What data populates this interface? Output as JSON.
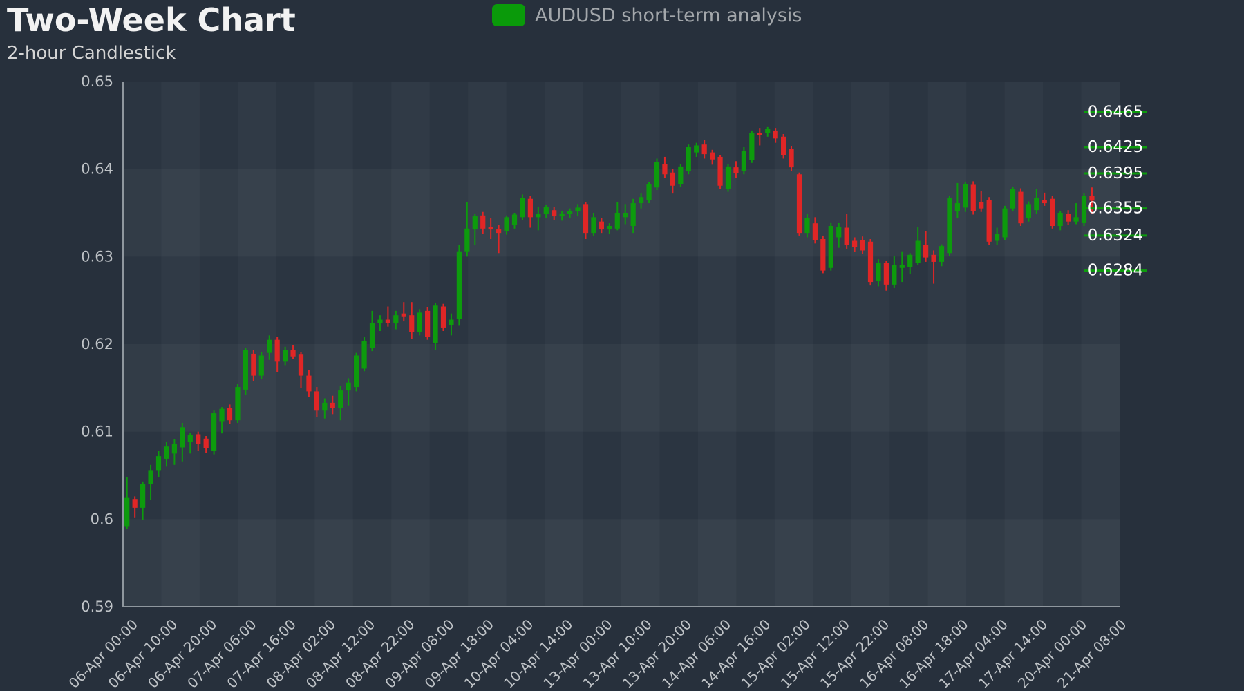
{
  "header": {
    "title": "Two-Week Chart",
    "subtitle": "2-hour Candlestick"
  },
  "legend": {
    "label": "AUDUSD short-term analysis",
    "swatch_color": "#0a9a0a"
  },
  "chart_data": {
    "type": "candlestick",
    "title": "Two-Week Chart",
    "subtitle": "2-hour Candlestick",
    "legend": "AUDUSD short-term analysis",
    "ylim": [
      0.59,
      0.65
    ],
    "y_ticks": [
      "0.65",
      "0.64",
      "0.63",
      "0.62",
      "0.61",
      "0.6",
      "0.59"
    ],
    "y_tick_values": [
      0.65,
      0.64,
      0.63,
      0.62,
      0.61,
      0.6,
      0.59
    ],
    "x_tick_labels": [
      "06-Apr 00:00",
      "06-Apr 10:00",
      "06-Apr 20:00",
      "07-Apr 06:00",
      "07-Apr 16:00",
      "08-Apr 02:00",
      "08-Apr 12:00",
      "08-Apr 22:00",
      "09-Apr 08:00",
      "09-Apr 18:00",
      "10-Apr 04:00",
      "10-Apr 14:00",
      "13-Apr 00:00",
      "13-Apr 10:00",
      "13-Apr 20:00",
      "14-Apr 06:00",
      "14-Apr 16:00",
      "15-Apr 02:00",
      "15-Apr 12:00",
      "15-Apr 22:00",
      "16-Apr 08:00",
      "16-Apr 18:00",
      "17-Apr 04:00",
      "17-Apr 14:00",
      "20-Apr 00:00",
      "21-Apr 08:00"
    ],
    "x_tick_slot_interval": 5,
    "total_slots": 126,
    "grid": "alternating row and column shading bands, no gridlines",
    "legend_position": "top-center",
    "price_level_labels": [
      "0.6465",
      "0.6425",
      "0.6395",
      "0.6355",
      "0.6324",
      "0.6284"
    ],
    "price_levels": [
      0.6465,
      0.6425,
      0.6395,
      0.6355,
      0.6324,
      0.6284
    ],
    "colors": {
      "up_candle": "#0d9b0d",
      "down_candle": "#e02626",
      "level_line": "#0d9b0d",
      "level_label_text": "#ffffff",
      "axis_line": "#8f979e",
      "tick_label": "#bfc3c7",
      "plot_bg": "#2b3541",
      "page_bg": "#27303c"
    },
    "candles_ohlc": [
      [
        0.5992,
        0.6048,
        0.5989,
        0.6025
      ],
      [
        0.6023,
        0.6026,
        0.6002,
        0.6013
      ],
      [
        0.6013,
        0.6043,
        0.5999,
        0.604
      ],
      [
        0.604,
        0.6062,
        0.6022,
        0.6056
      ],
      [
        0.6056,
        0.6078,
        0.6048,
        0.6072
      ],
      [
        0.6069,
        0.6088,
        0.606,
        0.6083
      ],
      [
        0.6075,
        0.6091,
        0.6062,
        0.6086
      ],
      [
        0.6082,
        0.611,
        0.6066,
        0.6105
      ],
      [
        0.6088,
        0.6099,
        0.6075,
        0.6096
      ],
      [
        0.6097,
        0.61,
        0.6078,
        0.6086
      ],
      [
        0.6092,
        0.6095,
        0.6076,
        0.6081
      ],
      [
        0.6078,
        0.6124,
        0.6074,
        0.6121
      ],
      [
        0.6112,
        0.6128,
        0.6098,
        0.6126
      ],
      [
        0.6127,
        0.6131,
        0.6109,
        0.6113
      ],
      [
        0.6113,
        0.6155,
        0.611,
        0.6151
      ],
      [
        0.6148,
        0.6196,
        0.6142,
        0.6193
      ],
      [
        0.6189,
        0.6193,
        0.6158,
        0.6164
      ],
      [
        0.6164,
        0.6191,
        0.616,
        0.6187
      ],
      [
        0.619,
        0.621,
        0.6182,
        0.6205
      ],
      [
        0.6205,
        0.6208,
        0.6168,
        0.618
      ],
      [
        0.618,
        0.6197,
        0.6176,
        0.6193
      ],
      [
        0.6193,
        0.6199,
        0.6183,
        0.6186
      ],
      [
        0.6188,
        0.6191,
        0.615,
        0.6164
      ],
      [
        0.6164,
        0.617,
        0.614,
        0.6146
      ],
      [
        0.6146,
        0.6151,
        0.6117,
        0.6124
      ],
      [
        0.6124,
        0.6138,
        0.6115,
        0.6133
      ],
      [
        0.6133,
        0.6141,
        0.612,
        0.6127
      ],
      [
        0.6127,
        0.6152,
        0.6113,
        0.6147
      ],
      [
        0.6147,
        0.6161,
        0.613,
        0.6156
      ],
      [
        0.6151,
        0.619,
        0.6146,
        0.6187
      ],
      [
        0.6172,
        0.6208,
        0.6169,
        0.6204
      ],
      [
        0.6196,
        0.6238,
        0.6192,
        0.6224
      ],
      [
        0.6224,
        0.6233,
        0.6215,
        0.6228
      ],
      [
        0.6228,
        0.6243,
        0.622,
        0.6224
      ],
      [
        0.6224,
        0.6238,
        0.6217,
        0.6233
      ],
      [
        0.6235,
        0.6248,
        0.6226,
        0.6231
      ],
      [
        0.6233,
        0.6248,
        0.6206,
        0.6214
      ],
      [
        0.6214,
        0.624,
        0.621,
        0.6236
      ],
      [
        0.6238,
        0.6242,
        0.6205,
        0.6208
      ],
      [
        0.6201,
        0.6247,
        0.6193,
        0.6244
      ],
      [
        0.6243,
        0.6246,
        0.6215,
        0.6219
      ],
      [
        0.6222,
        0.6235,
        0.621,
        0.6228
      ],
      [
        0.6229,
        0.6313,
        0.6221,
        0.6306
      ],
      [
        0.6306,
        0.6362,
        0.63,
        0.6332
      ],
      [
        0.6331,
        0.6349,
        0.6313,
        0.6346
      ],
      [
        0.6347,
        0.6351,
        0.6326,
        0.6332
      ],
      [
        0.6334,
        0.6344,
        0.632,
        0.6331
      ],
      [
        0.6331,
        0.6336,
        0.6304,
        0.6327
      ],
      [
        0.6329,
        0.6347,
        0.6325,
        0.6345
      ],
      [
        0.6336,
        0.635,
        0.6332,
        0.6348
      ],
      [
        0.6345,
        0.6371,
        0.6342,
        0.6367
      ],
      [
        0.6366,
        0.6369,
        0.6333,
        0.6345
      ],
      [
        0.6345,
        0.6357,
        0.633,
        0.6349
      ],
      [
        0.6349,
        0.6359,
        0.6344,
        0.6357
      ],
      [
        0.6353,
        0.6357,
        0.6342,
        0.6346
      ],
      [
        0.6346,
        0.6352,
        0.6341,
        0.6349
      ],
      [
        0.6349,
        0.6355,
        0.6344,
        0.6352
      ],
      [
        0.6352,
        0.636,
        0.6346,
        0.6356
      ],
      [
        0.636,
        0.6362,
        0.632,
        0.6327
      ],
      [
        0.6327,
        0.635,
        0.6324,
        0.6345
      ],
      [
        0.634,
        0.6344,
        0.6327,
        0.6331
      ],
      [
        0.6331,
        0.6338,
        0.6326,
        0.6335
      ],
      [
        0.6332,
        0.6362,
        0.633,
        0.635
      ],
      [
        0.6345,
        0.636,
        0.6337,
        0.635
      ],
      [
        0.6335,
        0.6366,
        0.6327,
        0.6361
      ],
      [
        0.6361,
        0.6372,
        0.6355,
        0.6368
      ],
      [
        0.6365,
        0.6385,
        0.6361,
        0.6383
      ],
      [
        0.6379,
        0.6412,
        0.6376,
        0.6408
      ],
      [
        0.6406,
        0.6414,
        0.639,
        0.6394
      ],
      [
        0.6396,
        0.64,
        0.6372,
        0.6381
      ],
      [
        0.6383,
        0.6406,
        0.638,
        0.6403
      ],
      [
        0.6398,
        0.6428,
        0.6394,
        0.6425
      ],
      [
        0.6419,
        0.643,
        0.6414,
        0.6427
      ],
      [
        0.6428,
        0.6433,
        0.6412,
        0.6417
      ],
      [
        0.6419,
        0.6422,
        0.6405,
        0.6411
      ],
      [
        0.6414,
        0.6416,
        0.6377,
        0.6381
      ],
      [
        0.6377,
        0.6406,
        0.6374,
        0.6403
      ],
      [
        0.6402,
        0.6409,
        0.639,
        0.6395
      ],
      [
        0.6398,
        0.6425,
        0.6394,
        0.6421
      ],
      [
        0.641,
        0.6444,
        0.6407,
        0.6441
      ],
      [
        0.6441,
        0.6447,
        0.6427,
        0.6439
      ],
      [
        0.6441,
        0.6448,
        0.6437,
        0.6446
      ],
      [
        0.6444,
        0.6447,
        0.643,
        0.6435
      ],
      [
        0.6437,
        0.644,
        0.6412,
        0.6416
      ],
      [
        0.6423,
        0.6426,
        0.6398,
        0.6402
      ],
      [
        0.6394,
        0.6396,
        0.6324,
        0.6327
      ],
      [
        0.6327,
        0.6349,
        0.6322,
        0.6344
      ],
      [
        0.6338,
        0.6345,
        0.6315,
        0.6319
      ],
      [
        0.632,
        0.6324,
        0.6281,
        0.6284
      ],
      [
        0.6287,
        0.6339,
        0.6284,
        0.6335
      ],
      [
        0.6322,
        0.6339,
        0.631,
        0.6334
      ],
      [
        0.6333,
        0.6349,
        0.6309,
        0.6313
      ],
      [
        0.6318,
        0.6322,
        0.6305,
        0.6311
      ],
      [
        0.6319,
        0.6323,
        0.6303,
        0.6307
      ],
      [
        0.6317,
        0.632,
        0.6267,
        0.6271
      ],
      [
        0.6272,
        0.6297,
        0.6266,
        0.6293
      ],
      [
        0.6293,
        0.6295,
        0.6261,
        0.6268
      ],
      [
        0.6268,
        0.6301,
        0.6264,
        0.629
      ],
      [
        0.6287,
        0.6306,
        0.6271,
        0.629
      ],
      [
        0.6288,
        0.6304,
        0.628,
        0.6302
      ],
      [
        0.6293,
        0.6334,
        0.629,
        0.6318
      ],
      [
        0.6313,
        0.6329,
        0.6294,
        0.6299
      ],
      [
        0.6302,
        0.6307,
        0.6269,
        0.6294
      ],
      [
        0.6294,
        0.6314,
        0.6289,
        0.6312
      ],
      [
        0.6304,
        0.6369,
        0.6301,
        0.6367
      ],
      [
        0.6352,
        0.6384,
        0.6344,
        0.6361
      ],
      [
        0.6356,
        0.6385,
        0.6351,
        0.6383
      ],
      [
        0.6382,
        0.6386,
        0.6348,
        0.6352
      ],
      [
        0.6362,
        0.6375,
        0.6351,
        0.6355
      ],
      [
        0.6365,
        0.6368,
        0.6313,
        0.6317
      ],
      [
        0.6318,
        0.6333,
        0.6313,
        0.6326
      ],
      [
        0.6322,
        0.6358,
        0.6319,
        0.6355
      ],
      [
        0.6355,
        0.638,
        0.6352,
        0.6377
      ],
      [
        0.6374,
        0.6378,
        0.6335,
        0.6338
      ],
      [
        0.6344,
        0.6363,
        0.634,
        0.636
      ],
      [
        0.6353,
        0.6377,
        0.6349,
        0.6367
      ],
      [
        0.6365,
        0.6373,
        0.6358,
        0.6361
      ],
      [
        0.6366,
        0.6369,
        0.6332,
        0.6335
      ],
      [
        0.6335,
        0.6352,
        0.633,
        0.635
      ],
      [
        0.6349,
        0.6353,
        0.6336,
        0.634
      ],
      [
        0.634,
        0.6361,
        0.6337,
        0.6345
      ],
      [
        0.6339,
        0.6372,
        0.6335,
        0.6369
      ],
      [
        0.6369,
        0.6379,
        0.6349,
        0.6364
      ]
    ]
  }
}
